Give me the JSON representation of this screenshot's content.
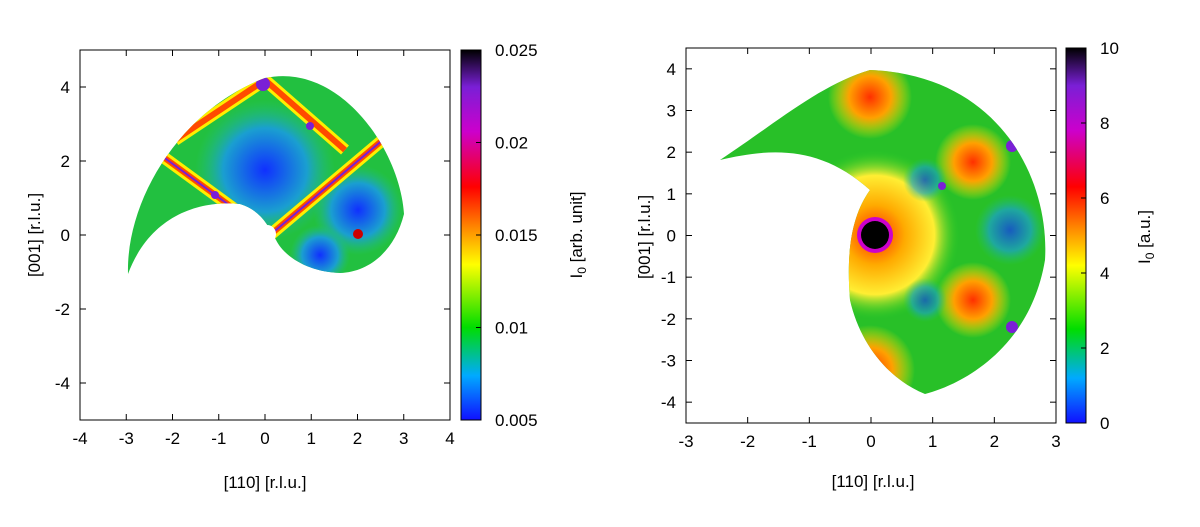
{
  "colors": {
    "colormap": [
      "#1010ff",
      "#00aaff",
      "#00dd00",
      "#ffff00",
      "#ff8800",
      "#ff0000",
      "#cc00cc",
      "#7a1fd6",
      "#000000"
    ],
    "background": "#ffffff"
  },
  "chart_data": [
    {
      "type": "heatmap",
      "title": "",
      "xlabel": "[110] [r.l.u.]",
      "ylabel": "[001] [r.l.u.]",
      "xlim": [
        -4,
        4
      ],
      "ylim": [
        -5,
        5
      ],
      "xticks": [
        "-4",
        "-3",
        "-2",
        "-1",
        "0",
        "1",
        "2",
        "3",
        "4"
      ],
      "yticks": [
        "4",
        "2",
        "0",
        "-2",
        "-4"
      ],
      "colorbar": {
        "label": "I",
        "label_sub": "0",
        "label_rest": " [arb. unit]",
        "range": [
          0.005,
          0.025
        ],
        "ticks": [
          "0.025",
          "0.02",
          "0.015",
          "0.01",
          "0.005"
        ]
      }
    },
    {
      "type": "heatmap",
      "title": "",
      "xlabel": "[110] [r.l.u.]",
      "ylabel": "[001] [r.l.u.]",
      "xlim": [
        -3,
        3
      ],
      "ylim": [
        -4.5,
        4.5
      ],
      "xticks": [
        "-3",
        "-2",
        "-1",
        "0",
        "1",
        "2",
        "3"
      ],
      "yticks": [
        "4",
        "3",
        "2",
        "1",
        "0",
        "-1",
        "-2",
        "-3",
        "-4"
      ],
      "colorbar": {
        "label": "I",
        "label_sub": "0",
        "label_rest": " [a.u.]",
        "range": [
          0,
          10
        ],
        "ticks": [
          "10",
          "8",
          "6",
          "4",
          "2",
          "0"
        ]
      }
    }
  ]
}
